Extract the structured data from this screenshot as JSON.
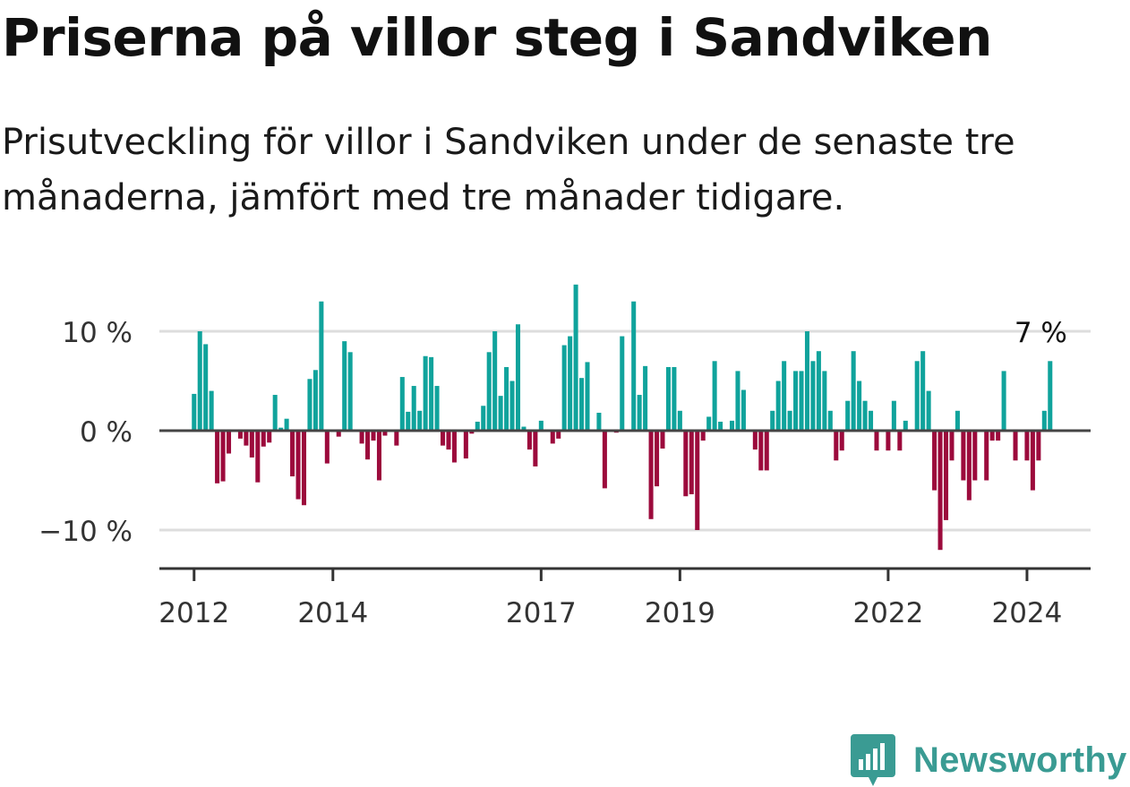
{
  "header": {
    "title": "Priserna på villor steg i Sandviken",
    "subtitle": "Prisutveckling för villor i Sandviken under de senaste tre månaderna, jämfört med tre månader tidigare."
  },
  "brand": {
    "name": "Newsworthy",
    "icon": "newsworthy-logo-icon",
    "color": "#3a9b93"
  },
  "colors": {
    "positive": "#10a39c",
    "negative": "#9c0a3c",
    "grid": "#dddddd",
    "axis": "#444444"
  },
  "chart_data": {
    "type": "bar",
    "unit": "%",
    "x_start": "2012-01",
    "x_range": [
      "2011-07",
      "2024-12"
    ],
    "ylim": [
      -14,
      15
    ],
    "yticks": [
      {
        "value": 10,
        "label": "10 %"
      },
      {
        "value": 0,
        "label": "0 %"
      },
      {
        "value": -10,
        "label": "−10 %"
      }
    ],
    "xticks": [
      {
        "date": "2012-01",
        "label": "2012"
      },
      {
        "date": "2014-01",
        "label": "2014"
      },
      {
        "date": "2017-01",
        "label": "2017"
      },
      {
        "date": "2019-01",
        "label": "2019"
      },
      {
        "date": "2022-01",
        "label": "2022"
      },
      {
        "date": "2024-01",
        "label": "2024"
      }
    ],
    "grid": true,
    "annotation": {
      "date": "2024-03",
      "text": "7 %"
    },
    "values": [
      3.7,
      10,
      8.7,
      4,
      -5.3,
      -5.1,
      -2.3,
      0,
      -0.8,
      -1.5,
      -2.7,
      -5.2,
      -1.6,
      -1.2,
      3.6,
      0.3,
      1.2,
      -4.6,
      -6.9,
      -7.5,
      5.2,
      6.1,
      13,
      -3.3,
      0,
      -0.6,
      9,
      7.9,
      0,
      -1.3,
      -2.9,
      -1,
      -5,
      -0.5,
      0,
      -1.5,
      5.4,
      1.9,
      4.5,
      2,
      7.5,
      7.4,
      4.5,
      -1.5,
      -1.9,
      -3.2,
      0,
      -2.8,
      -0.3,
      0.9,
      2.5,
      7.9,
      10,
      3.5,
      6.4,
      5,
      10.7,
      0.4,
      -1.9,
      -3.6,
      1,
      0,
      -1.3,
      -0.8,
      8.6,
      9.5,
      14.7,
      5.3,
      6.9,
      0,
      1.8,
      -5.8,
      0,
      -0.2,
      9.5,
      0,
      13,
      3.6,
      6.5,
      -8.9,
      -5.6,
      -1.8,
      6.4,
      6.4,
      2,
      -6.6,
      -6.4,
      -10,
      -1,
      1.4,
      7,
      0.9,
      0,
      1,
      6,
      4.1,
      0,
      -1.9,
      -4,
      -4,
      2,
      5,
      7,
      2,
      6,
      6,
      10,
      7,
      8,
      6,
      2,
      -3,
      -2,
      3,
      8,
      5,
      3,
      2,
      -2,
      0,
      -2,
      3,
      -2,
      1,
      0,
      7,
      8,
      4,
      -6,
      -12,
      -9,
      -3,
      2,
      -5,
      -7,
      -5,
      0,
      -5,
      -1,
      -1,
      6,
      0,
      -3,
      0,
      -3,
      -6,
      -3,
      2,
      7
    ]
  }
}
